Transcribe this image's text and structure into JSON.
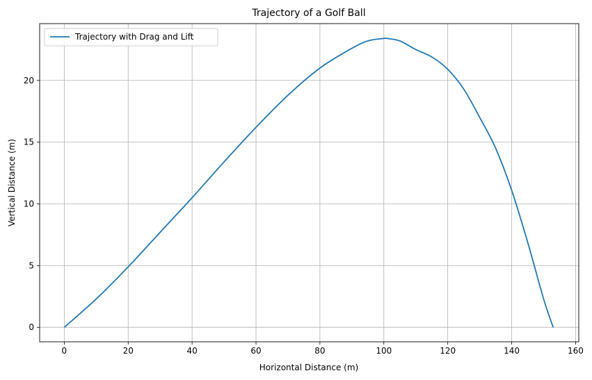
{
  "chart_data": {
    "type": "line",
    "title": "Trajectory of a Golf Ball",
    "xlabel": "Horizontal Distance (m)",
    "ylabel": "Vertical Distance (m)",
    "xlim": [
      -7.7,
      161
    ],
    "ylim": [
      -1.17,
      24.6
    ],
    "xticks": [
      0,
      20,
      40,
      60,
      80,
      100,
      120,
      140,
      160
    ],
    "yticks": [
      0,
      5,
      10,
      15,
      20
    ],
    "grid": true,
    "legend_position": "top-left",
    "series": [
      {
        "name": "Trajectory with Drag and Lift",
        "color": "#1f77b4",
        "x": [
          0,
          10,
          20,
          30,
          40,
          50,
          60,
          70,
          80,
          90,
          95,
          100,
          101,
          105,
          110,
          115,
          120,
          125,
          130,
          135,
          140,
          145,
          150,
          153
        ],
        "y": [
          0,
          2.3,
          4.9,
          7.7,
          10.5,
          13.4,
          16.2,
          18.8,
          21.0,
          22.6,
          23.2,
          23.4,
          23.4,
          23.2,
          22.5,
          21.9,
          20.9,
          19.3,
          17.0,
          14.5,
          11.1,
          6.9,
          2.3,
          0
        ]
      }
    ]
  }
}
